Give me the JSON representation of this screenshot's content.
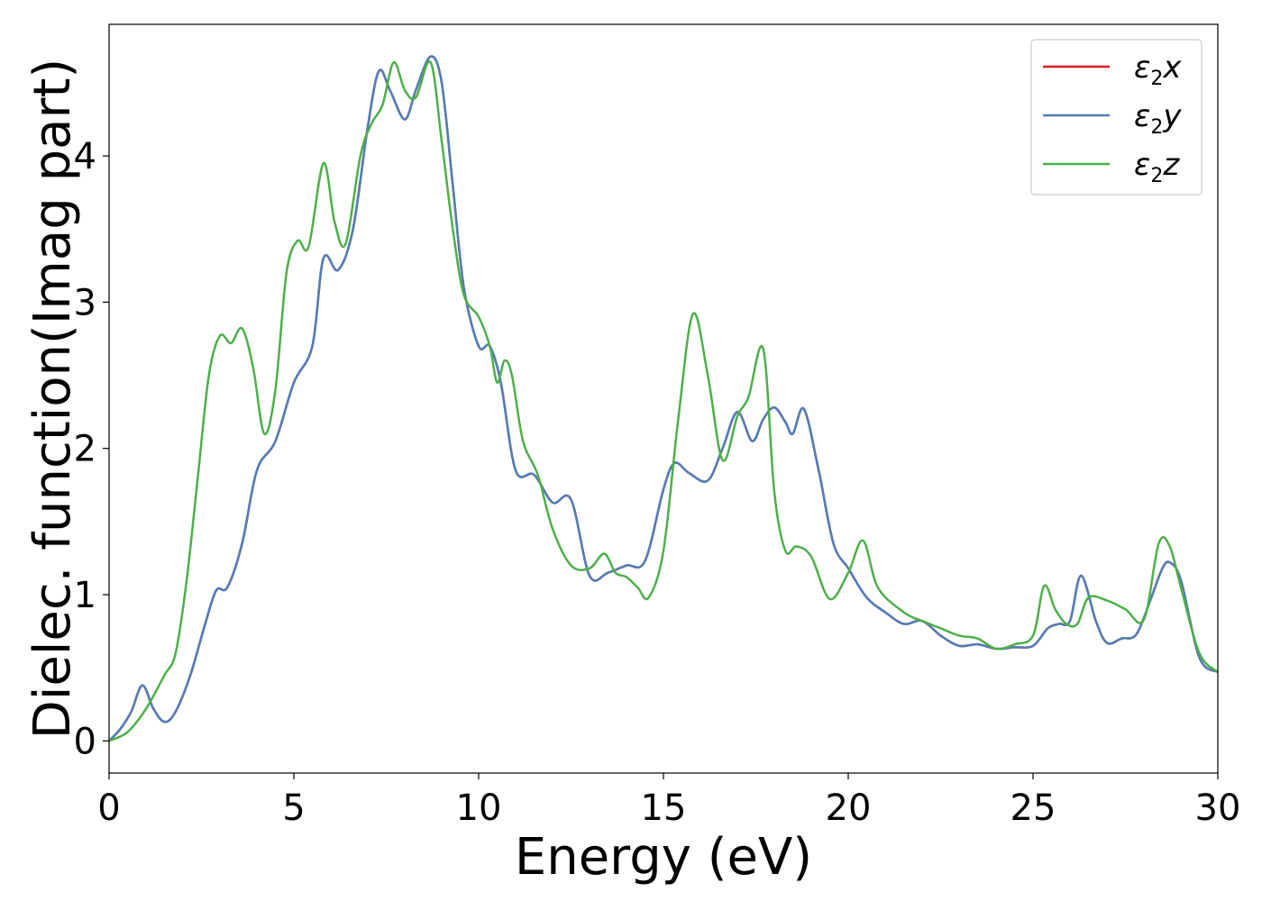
{
  "chart_data": {
    "type": "line",
    "title": "",
    "xlabel": "Energy (eV)",
    "ylabel": "Dielec. function(Imag part)",
    "xlim": [
      0,
      30
    ],
    "ylim": [
      -0.22,
      4.9
    ],
    "xticks": [
      0,
      5,
      10,
      15,
      20,
      25,
      30
    ],
    "yticks": [
      0,
      1,
      2,
      3,
      4
    ],
    "grid": false,
    "legend_position": "top-right",
    "series": [
      {
        "name": "ε2x",
        "legend_main": "ε",
        "legend_sub": "2",
        "legend_tail": "x",
        "color": "#e41a1c",
        "x": [
          0,
          0.3,
          0.6,
          0.9,
          1.2,
          1.5,
          1.8,
          2.2,
          2.6,
          2.9,
          3.2,
          3.6,
          4.0,
          4.5,
          5.0,
          5.5,
          5.8,
          6.2,
          6.6,
          7.0,
          7.3,
          7.6,
          8.0,
          8.3,
          8.7,
          9.0,
          9.3,
          9.6,
          10.0,
          10.3,
          10.6,
          11.0,
          11.5,
          12.0,
          12.5,
          13.0,
          13.5,
          14.0,
          14.5,
          15.0,
          15.3,
          15.7,
          16.2,
          16.6,
          17.0,
          17.4,
          17.7,
          18.0,
          18.3,
          18.5,
          18.8,
          19.2,
          19.6,
          20.0,
          20.5,
          21.0,
          21.5,
          22.0,
          22.5,
          23.0,
          23.5,
          24.0,
          24.5,
          25.0,
          25.4,
          25.7,
          26.0,
          26.3,
          26.7,
          27.0,
          27.4,
          27.8,
          28.2,
          28.5,
          28.7,
          29.0,
          29.5,
          30.0
        ],
        "y": [
          0,
          0.08,
          0.2,
          0.38,
          0.22,
          0.13,
          0.2,
          0.45,
          0.8,
          1.03,
          1.05,
          1.35,
          1.85,
          2.05,
          2.45,
          2.7,
          3.3,
          3.22,
          3.5,
          4.2,
          4.58,
          4.45,
          4.25,
          4.45,
          4.68,
          4.5,
          3.8,
          3.1,
          2.7,
          2.7,
          2.45,
          1.85,
          1.82,
          1.63,
          1.65,
          1.13,
          1.15,
          1.2,
          1.23,
          1.72,
          1.9,
          1.83,
          1.78,
          2.0,
          2.25,
          2.05,
          2.2,
          2.28,
          2.18,
          2.1,
          2.27,
          1.85,
          1.35,
          1.18,
          0.98,
          0.88,
          0.8,
          0.82,
          0.72,
          0.65,
          0.66,
          0.63,
          0.64,
          0.65,
          0.77,
          0.8,
          0.82,
          1.13,
          0.82,
          0.67,
          0.7,
          0.73,
          0.98,
          1.18,
          1.22,
          1.1,
          0.57,
          0.47
        ]
      },
      {
        "name": "ε2y",
        "legend_main": "ε",
        "legend_sub": "2",
        "legend_tail": "y",
        "color": "#4e7fb8",
        "x": [
          0,
          0.3,
          0.6,
          0.9,
          1.2,
          1.5,
          1.8,
          2.2,
          2.6,
          2.9,
          3.2,
          3.6,
          4.0,
          4.5,
          5.0,
          5.5,
          5.8,
          6.2,
          6.6,
          7.0,
          7.3,
          7.6,
          8.0,
          8.3,
          8.7,
          9.0,
          9.3,
          9.6,
          10.0,
          10.3,
          10.6,
          11.0,
          11.5,
          12.0,
          12.5,
          13.0,
          13.5,
          14.0,
          14.5,
          15.0,
          15.3,
          15.7,
          16.2,
          16.6,
          17.0,
          17.4,
          17.7,
          18.0,
          18.3,
          18.5,
          18.8,
          19.2,
          19.6,
          20.0,
          20.5,
          21.0,
          21.5,
          22.0,
          22.5,
          23.0,
          23.5,
          24.0,
          24.5,
          25.0,
          25.4,
          25.7,
          26.0,
          26.3,
          26.7,
          27.0,
          27.4,
          27.8,
          28.2,
          28.5,
          28.7,
          29.0,
          29.5,
          30.0
        ],
        "y": [
          0,
          0.08,
          0.2,
          0.38,
          0.22,
          0.13,
          0.2,
          0.45,
          0.8,
          1.03,
          1.05,
          1.35,
          1.85,
          2.05,
          2.45,
          2.7,
          3.3,
          3.22,
          3.5,
          4.2,
          4.58,
          4.45,
          4.25,
          4.45,
          4.68,
          4.5,
          3.8,
          3.1,
          2.7,
          2.7,
          2.45,
          1.85,
          1.82,
          1.63,
          1.65,
          1.13,
          1.15,
          1.2,
          1.23,
          1.72,
          1.9,
          1.83,
          1.78,
          2.0,
          2.25,
          2.05,
          2.2,
          2.28,
          2.18,
          2.1,
          2.27,
          1.85,
          1.35,
          1.18,
          0.98,
          0.88,
          0.8,
          0.82,
          0.72,
          0.65,
          0.66,
          0.63,
          0.64,
          0.65,
          0.77,
          0.8,
          0.82,
          1.13,
          0.82,
          0.67,
          0.7,
          0.73,
          0.98,
          1.18,
          1.22,
          1.1,
          0.57,
          0.47
        ]
      },
      {
        "name": "ε2z",
        "legend_main": "ε",
        "legend_sub": "2",
        "legend_tail": "z",
        "color": "#4daf4a",
        "x": [
          0,
          0.5,
          1.0,
          1.5,
          1.8,
          2.1,
          2.4,
          2.7,
          3.0,
          3.3,
          3.6,
          3.9,
          4.2,
          4.5,
          4.8,
          5.1,
          5.4,
          5.8,
          6.1,
          6.4,
          6.8,
          7.1,
          7.4,
          7.7,
          8.0,
          8.3,
          8.7,
          9.0,
          9.3,
          9.6,
          10.0,
          10.3,
          10.5,
          10.7,
          10.9,
          11.2,
          11.6,
          12.0,
          12.5,
          13.0,
          13.4,
          13.7,
          14.0,
          14.3,
          14.6,
          15.0,
          15.4,
          15.8,
          16.2,
          16.6,
          17.0,
          17.3,
          17.7,
          18.0,
          18.3,
          18.6,
          19.0,
          19.5,
          20.0,
          20.4,
          20.8,
          21.5,
          22.0,
          22.5,
          23.0,
          23.5,
          24.0,
          24.5,
          25.0,
          25.3,
          25.6,
          25.9,
          26.2,
          26.5,
          27.0,
          27.5,
          28.0,
          28.4,
          28.7,
          29.0,
          29.5,
          30.0
        ],
        "y": [
          0,
          0.06,
          0.22,
          0.45,
          0.6,
          1.1,
          1.8,
          2.5,
          2.77,
          2.72,
          2.82,
          2.55,
          2.1,
          2.4,
          3.2,
          3.42,
          3.38,
          3.95,
          3.55,
          3.4,
          4.0,
          4.22,
          4.35,
          4.64,
          4.45,
          4.4,
          4.64,
          4.1,
          3.5,
          3.05,
          2.9,
          2.7,
          2.45,
          2.6,
          2.5,
          2.05,
          1.82,
          1.45,
          1.2,
          1.18,
          1.28,
          1.15,
          1.12,
          1.05,
          0.98,
          1.3,
          2.2,
          2.92,
          2.5,
          1.92,
          2.22,
          2.35,
          2.68,
          1.7,
          1.3,
          1.33,
          1.26,
          0.97,
          1.15,
          1.37,
          1.05,
          0.88,
          0.82,
          0.77,
          0.72,
          0.7,
          0.63,
          0.66,
          0.72,
          1.06,
          0.9,
          0.8,
          0.8,
          0.98,
          0.96,
          0.9,
          0.83,
          1.35,
          1.33,
          1.05,
          0.6,
          0.47
        ]
      }
    ]
  }
}
